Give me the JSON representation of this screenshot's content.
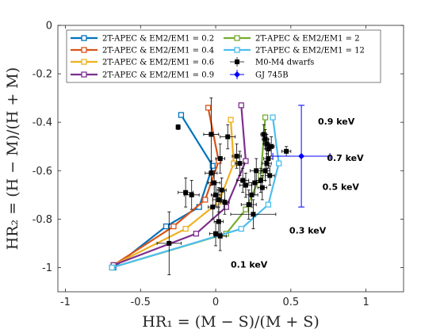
{
  "chart_data": {
    "type": "scatter",
    "title": "",
    "xlabel": "HR₁ = (M − S)/(M + S)",
    "ylabel": "HR₂ = (H − M)/(H + M)",
    "xlim": [
      -1.05,
      1.25
    ],
    "ylim": [
      -1.1,
      0.0
    ],
    "xticks": [
      -1,
      -0.5,
      0,
      0.5,
      1
    ],
    "xtick_labels": [
      "-1",
      "-0.5",
      "0",
      "0.5",
      "1"
    ],
    "yticks": [
      0,
      -0.2,
      -0.4,
      -0.6,
      -0.8,
      -1
    ],
    "ytick_labels": [
      "0",
      "-0.2",
      "-0.4",
      "-0.6",
      "-0.8",
      "-1"
    ],
    "grid": false,
    "legend_position": "top",
    "series": [
      {
        "name": "2T-APEC & EM2/EM1 = 0.2",
        "color": "#0072BD",
        "x": [
          -0.68,
          -0.33,
          -0.11,
          -0.02,
          -0.23
        ],
        "y": [
          -1.0,
          -0.83,
          -0.75,
          -0.58,
          -0.37
        ]
      },
      {
        "name": "2T-APEC & EM2/EM1 = 0.4",
        "color": "#D95319",
        "x": [
          -0.68,
          -0.28,
          -0.07,
          0.02,
          -0.05
        ],
        "y": [
          -0.99,
          -0.83,
          -0.72,
          -0.56,
          -0.34
        ]
      },
      {
        "name": "2T-APEC & EM2/EM1 = 0.6",
        "color": "#EDB120",
        "x": [
          -0.68,
          -0.2,
          0.02,
          0.12,
          0.1
        ],
        "y": [
          -0.99,
          -0.84,
          -0.73,
          -0.57,
          -0.39
        ]
      },
      {
        "name": "2T-APEC & EM2/EM1 = 0.9",
        "color": "#7E2F8E",
        "x": [
          -0.68,
          -0.13,
          0.07,
          0.2,
          0.17
        ],
        "y": [
          -0.99,
          -0.86,
          -0.75,
          -0.56,
          -0.33
        ]
      },
      {
        "name": "2T-APEC & EM2/EM1 = 2",
        "color": "#77AC30",
        "x": [
          -0.69,
          0.07,
          0.2,
          0.3,
          0.33
        ],
        "y": [
          -1.0,
          -0.86,
          -0.76,
          -0.62,
          -0.38
        ]
      },
      {
        "name": "2T-APEC & EM2/EM1 = 12",
        "color": "#4DBEEE",
        "x": [
          -0.69,
          0.17,
          0.35,
          0.42,
          0.38
        ],
        "y": [
          -1.0,
          -0.84,
          -0.74,
          -0.57,
          -0.38
        ]
      }
    ],
    "dwarfs": {
      "name": "M0-M4 dwarfs",
      "color": "#000000",
      "points": [
        {
          "x": -0.25,
          "y": -0.42,
          "xerr": 0.01,
          "yerr": 0.01
        },
        {
          "x": -0.03,
          "y": -0.45,
          "xerr": 0.05,
          "yerr": 0.15
        },
        {
          "x": 0.08,
          "y": -0.46,
          "xerr": 0.05,
          "yerr": 0.05
        },
        {
          "x": 0.03,
          "y": -0.55,
          "xerr": 0.03,
          "yerr": 0.06
        },
        {
          "x": -0.2,
          "y": -0.69,
          "xerr": 0.05,
          "yerr": 0.06
        },
        {
          "x": -0.16,
          "y": -0.7,
          "xerr": 0.05,
          "yerr": 0.06
        },
        {
          "x": -0.03,
          "y": -0.61,
          "xerr": 0.04,
          "yerr": 0.05
        },
        {
          "x": -0.01,
          "y": -0.65,
          "xerr": 0.04,
          "yerr": 0.05
        },
        {
          "x": 0.0,
          "y": -0.7,
          "xerr": 0.03,
          "yerr": 0.05
        },
        {
          "x": 0.02,
          "y": -0.72,
          "xerr": 0.04,
          "yerr": 0.05
        },
        {
          "x": -0.02,
          "y": -0.75,
          "xerr": 0.03,
          "yerr": 0.05
        },
        {
          "x": 0.04,
          "y": -0.68,
          "xerr": 0.03,
          "yerr": 0.05
        },
        {
          "x": 0.06,
          "y": -0.73,
          "xerr": 0.03,
          "yerr": 0.05
        },
        {
          "x": 0.02,
          "y": -0.81,
          "xerr": 0.03,
          "yerr": 0.06
        },
        {
          "x": 0.03,
          "y": -0.87,
          "xerr": 0.04,
          "yerr": 0.06
        },
        {
          "x": 0.0,
          "y": -0.86,
          "xerr": 0.04,
          "yerr": 0.05
        },
        {
          "x": 0.14,
          "y": -0.54,
          "xerr": 0.03,
          "yerr": 0.05
        },
        {
          "x": 0.16,
          "y": -0.57,
          "xerr": 0.03,
          "yerr": 0.05
        },
        {
          "x": 0.18,
          "y": -0.64,
          "xerr": 0.04,
          "yerr": 0.05
        },
        {
          "x": 0.2,
          "y": -0.66,
          "xerr": 0.04,
          "yerr": 0.05
        },
        {
          "x": 0.22,
          "y": -0.74,
          "xerr": 0.05,
          "yerr": 0.06
        },
        {
          "x": 0.26,
          "y": -0.65,
          "xerr": 0.04,
          "yerr": 0.05
        },
        {
          "x": 0.27,
          "y": -0.6,
          "xerr": 0.04,
          "yerr": 0.05
        },
        {
          "x": 0.24,
          "y": -0.7,
          "xerr": 0.04,
          "yerr": 0.05
        },
        {
          "x": 0.25,
          "y": -0.78,
          "xerr": 0.15,
          "yerr": 0.06
        },
        {
          "x": 0.3,
          "y": -0.64,
          "xerr": 0.03,
          "yerr": 0.05
        },
        {
          "x": 0.31,
          "y": -0.67,
          "xerr": 0.03,
          "yerr": 0.05
        },
        {
          "x": 0.33,
          "y": -0.6,
          "xerr": 0.03,
          "yerr": 0.04
        },
        {
          "x": 0.34,
          "y": -0.57,
          "xerr": 0.03,
          "yerr": 0.04
        },
        {
          "x": 0.35,
          "y": -0.55,
          "xerr": 0.03,
          "yerr": 0.04
        },
        {
          "x": 0.36,
          "y": -0.62,
          "xerr": 0.03,
          "yerr": 0.04
        },
        {
          "x": 0.32,
          "y": -0.45,
          "xerr": 0.02,
          "yerr": 0.04
        },
        {
          "x": 0.33,
          "y": -0.47,
          "xerr": 0.02,
          "yerr": 0.04
        },
        {
          "x": 0.34,
          "y": -0.49,
          "xerr": 0.02,
          "yerr": 0.04
        },
        {
          "x": 0.35,
          "y": -0.51,
          "xerr": 0.02,
          "yerr": 0.04
        },
        {
          "x": 0.37,
          "y": -0.5,
          "xerr": 0.02,
          "yerr": 0.04
        },
        {
          "x": 0.47,
          "y": -0.52,
          "xerr": 0.03,
          "yerr": 0.02
        },
        {
          "x": -0.31,
          "y": -0.9,
          "xerr": 0.08,
          "yerr": 0.13
        }
      ]
    },
    "gj745b": {
      "name": "GJ 745B",
      "color": "#0000FF",
      "x": 0.57,
      "y": -0.54,
      "xerr": 0.19,
      "yerr": 0.21
    },
    "annotations": [
      {
        "text": "0.9 keV",
        "x": 0.68,
        "y": -0.41
      },
      {
        "text": "0.7 keV",
        "x": 0.74,
        "y": -0.56
      },
      {
        "text": "0.5 keV",
        "x": 0.71,
        "y": -0.68
      },
      {
        "text": "0.3 keV",
        "x": 0.49,
        "y": -0.86
      },
      {
        "text": "0.1 keV",
        "x": 0.1,
        "y": -1.0
      }
    ]
  }
}
